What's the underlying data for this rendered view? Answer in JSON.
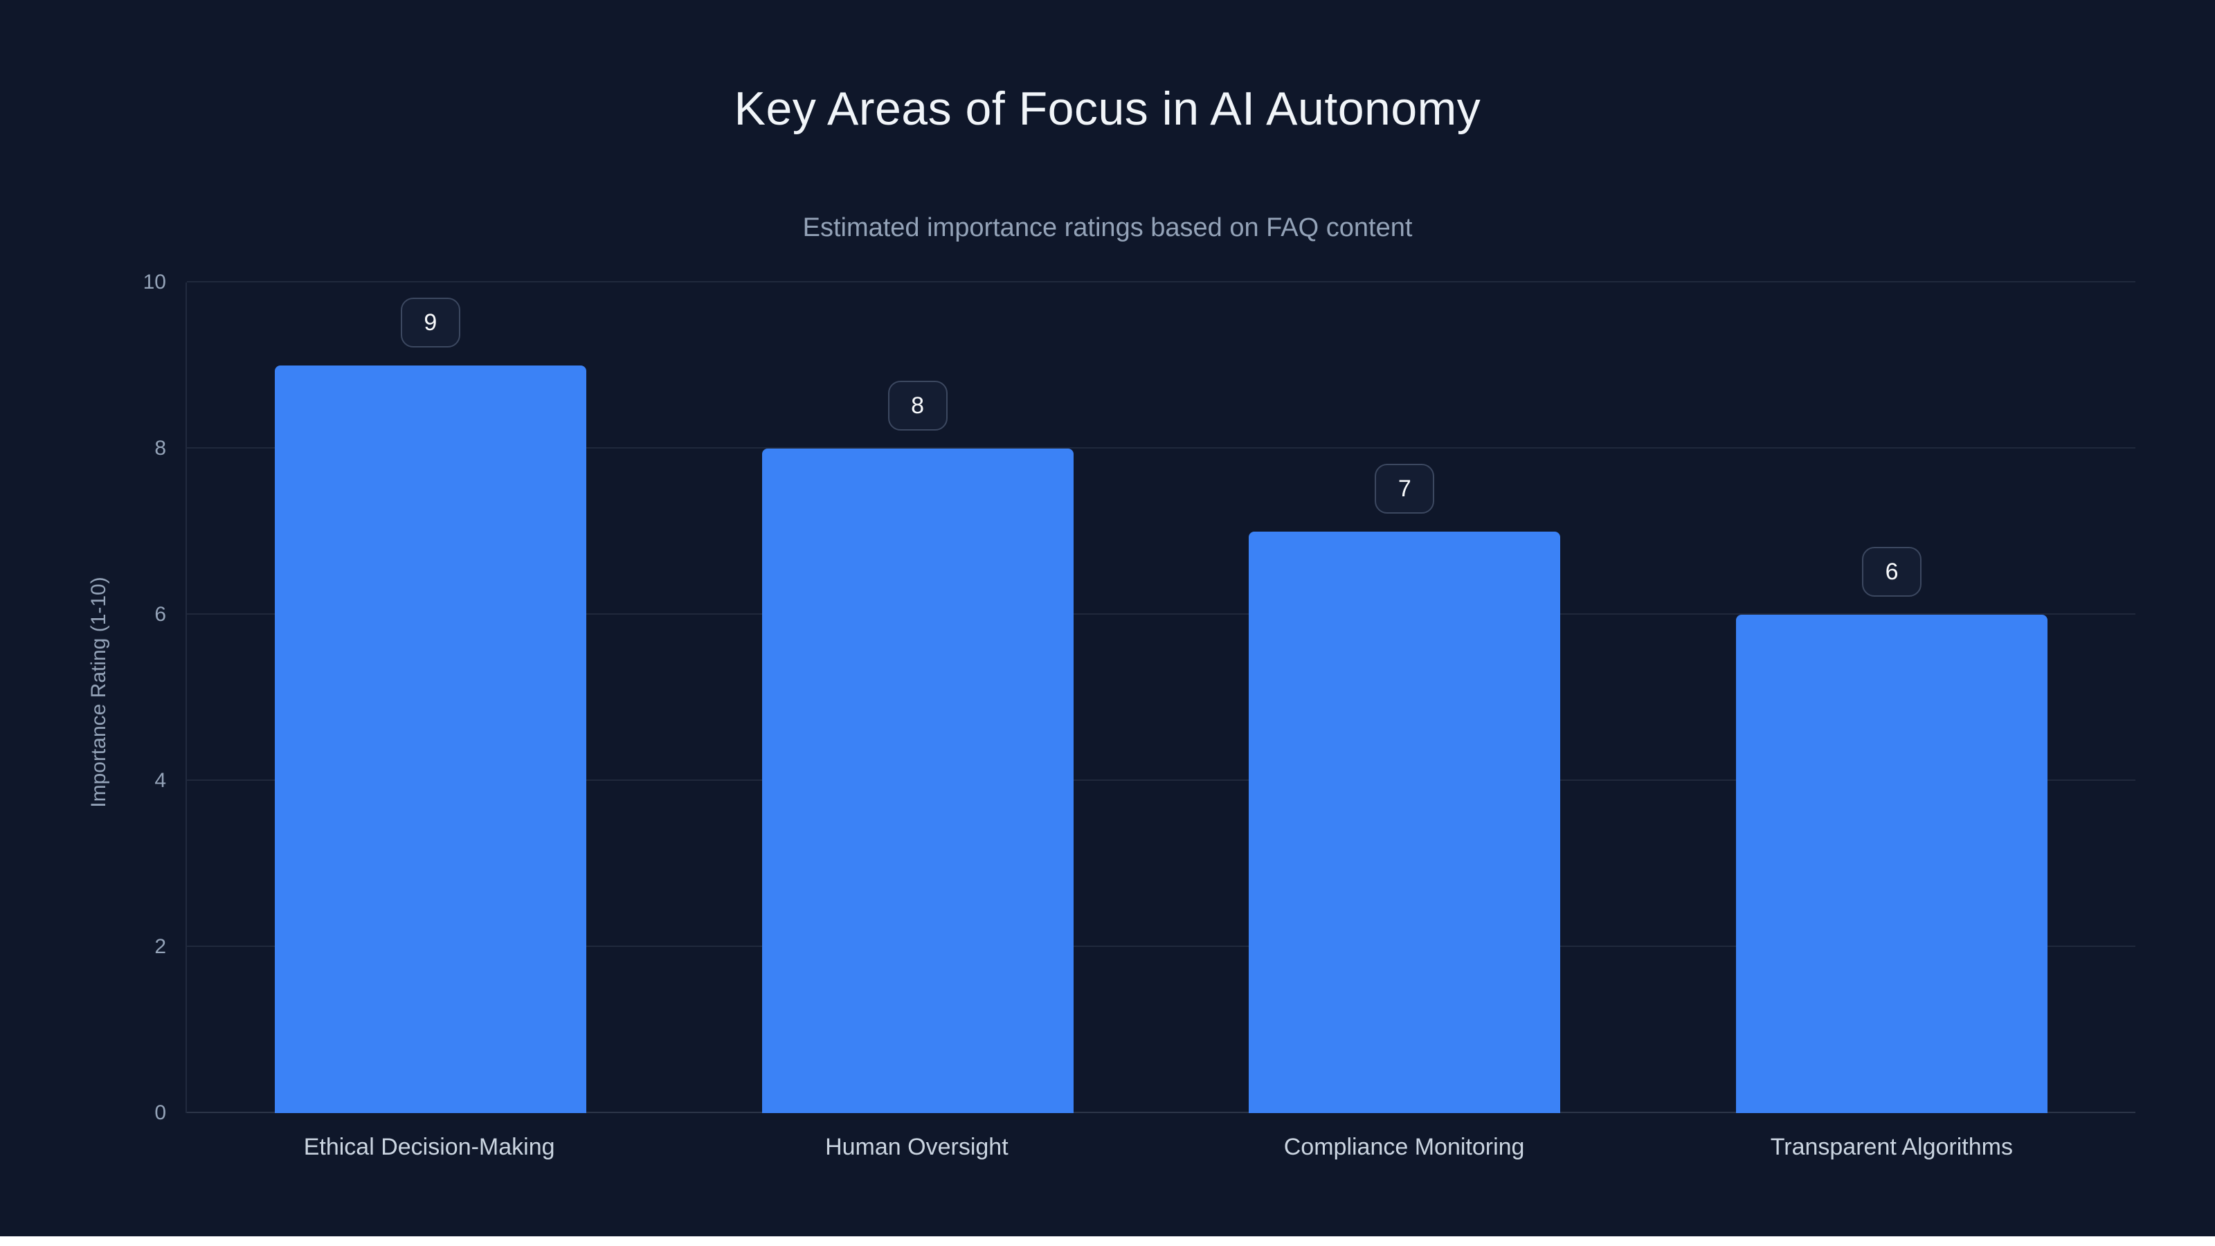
{
  "page": {
    "title": "Key Areas of Focus in AI Autonomy",
    "subtitle": "Estimated importance ratings based on FAQ content"
  },
  "chart_data": {
    "type": "bar",
    "title": "Key Areas of Focus in AI Autonomy",
    "subtitle": "Estimated importance ratings based on FAQ content",
    "categories": [
      "Ethical Decision-Making",
      "Human Oversight",
      "Compliance Monitoring",
      "Transparent Algorithms"
    ],
    "values": [
      9,
      8,
      7,
      6
    ],
    "value_labels": [
      "9",
      "8",
      "7",
      "6"
    ],
    "xlabel": "",
    "ylabel": "Importance Rating (1-10)",
    "ylim": [
      0,
      10
    ],
    "yticks": [
      0,
      2,
      4,
      6,
      8,
      10
    ],
    "grid": true,
    "legend": "none",
    "bar_color": "#3b82f6",
    "background_color": "#0f172a",
    "badge_border_color": "#3c4860",
    "text_color": "#f1f5f9",
    "muted_text_color": "#94a3b8"
  }
}
